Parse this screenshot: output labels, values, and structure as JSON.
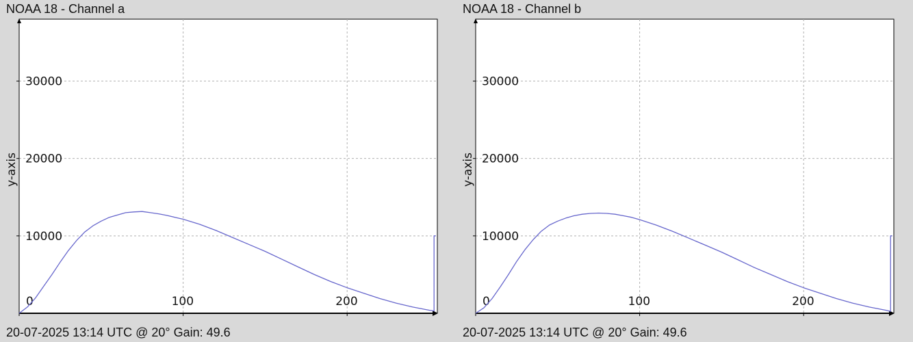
{
  "chart_data": [
    {
      "type": "line",
      "title": "NOAA 18 - Channel a",
      "footer": "20-07-2025 13:14 UTC @ 20° Gain: 49.6",
      "xlabel": "",
      "ylabel": "y-axis",
      "xlim": [
        0,
        255
      ],
      "ylim": [
        0,
        38000
      ],
      "x_ticks": [
        0,
        100,
        200
      ],
      "y_ticks": [
        10000,
        20000,
        30000
      ],
      "x_tick_labels": [
        "0",
        "100",
        "200"
      ],
      "y_tick_labels": [
        "10000",
        "20000",
        "30000"
      ],
      "grid": true,
      "line_color": "#6666cc",
      "series": [
        {
          "x": [
            0,
            5,
            10,
            15,
            20,
            25,
            30,
            35,
            40,
            45,
            50,
            55,
            60,
            65,
            70,
            75,
            80,
            85,
            90,
            95,
            100,
            110,
            120,
            130,
            140,
            150,
            160,
            170,
            180,
            190,
            200,
            210,
            220,
            230,
            240,
            250,
            253,
            253,
            254
          ],
          "y": [
            0,
            800,
            2000,
            3500,
            5000,
            6600,
            8100,
            9400,
            10500,
            11300,
            11900,
            12400,
            12700,
            13000,
            13100,
            13150,
            13000,
            12850,
            12650,
            12400,
            12150,
            11500,
            10700,
            9800,
            8900,
            8000,
            7000,
            6000,
            5000,
            4100,
            3300,
            2600,
            1900,
            1300,
            800,
            400,
            300,
            10000,
            10000
          ]
        }
      ]
    },
    {
      "type": "line",
      "title": "NOAA 18 - Channel b",
      "footer": "20-07-2025 13:14 UTC @ 20° Gain: 49.6",
      "xlabel": "",
      "ylabel": "y-axis",
      "xlim": [
        0,
        255
      ],
      "ylim": [
        0,
        38000
      ],
      "x_ticks": [
        0,
        100,
        200
      ],
      "y_ticks": [
        10000,
        20000,
        30000
      ],
      "x_tick_labels": [
        "0",
        "100",
        "200"
      ],
      "y_tick_labels": [
        "10000",
        "20000",
        "30000"
      ],
      "grid": true,
      "line_color": "#6666cc",
      "series": [
        {
          "x": [
            0,
            5,
            10,
            15,
            20,
            25,
            30,
            35,
            40,
            45,
            50,
            55,
            60,
            65,
            70,
            75,
            80,
            85,
            90,
            95,
            100,
            110,
            120,
            130,
            140,
            150,
            160,
            170,
            180,
            190,
            200,
            210,
            220,
            230,
            240,
            250,
            253,
            253,
            254
          ],
          "y": [
            0,
            700,
            1900,
            3400,
            5000,
            6700,
            8200,
            9500,
            10600,
            11400,
            11900,
            12300,
            12600,
            12800,
            12900,
            12950,
            12900,
            12800,
            12600,
            12400,
            12100,
            11400,
            10600,
            9700,
            8800,
            7900,
            6900,
            5900,
            5000,
            4100,
            3300,
            2600,
            1900,
            1300,
            800,
            400,
            250,
            10000,
            10000
          ]
        }
      ]
    }
  ]
}
